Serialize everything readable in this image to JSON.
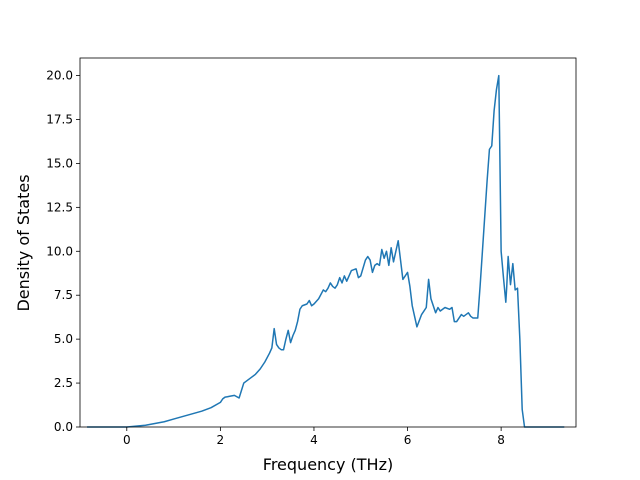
{
  "chart_data": {
    "type": "line",
    "title": "",
    "xlabel": "Frequency (THz)",
    "ylabel": "Density of States",
    "xlim": [
      -1.0,
      9.6
    ],
    "ylim": [
      0,
      21
    ],
    "xticks": [
      0,
      2,
      4,
      6,
      8
    ],
    "xtick_labels": [
      "0",
      "2",
      "4",
      "6",
      "8"
    ],
    "yticks": [
      0,
      2.5,
      5,
      7.5,
      10,
      12.5,
      15,
      17.5,
      20
    ],
    "ytick_labels": [
      "0.0",
      "2.5",
      "5.0",
      "7.5",
      "10.0",
      "12.5",
      "15.0",
      "17.5",
      "20.0"
    ],
    "grid": false,
    "legend": "none",
    "line_color": "#1f77b4",
    "series": [
      {
        "x": [
          -0.85,
          -0.5,
          -0.2,
          0.0,
          0.2,
          0.4,
          0.6,
          0.8,
          1.0,
          1.2,
          1.4,
          1.6,
          1.8,
          2.0,
          2.05,
          2.1,
          2.15,
          2.2,
          2.3,
          2.4,
          2.5,
          2.55,
          2.65,
          2.75,
          2.85,
          2.95,
          3.05,
          3.1,
          3.15,
          3.2,
          3.25,
          3.3,
          3.35,
          3.4,
          3.45,
          3.5,
          3.55,
          3.6,
          3.65,
          3.7,
          3.75,
          3.85,
          3.9,
          3.95,
          4.0,
          4.1,
          4.2,
          4.25,
          4.3,
          4.35,
          4.4,
          4.45,
          4.5,
          4.55,
          4.6,
          4.65,
          4.7,
          4.8,
          4.9,
          4.95,
          5.0,
          5.1,
          5.15,
          5.2,
          5.25,
          5.3,
          5.35,
          5.4,
          5.45,
          5.5,
          5.55,
          5.6,
          5.65,
          5.7,
          5.75,
          5.8,
          5.85,
          5.9,
          6.0,
          6.05,
          6.1,
          6.15,
          6.2,
          6.3,
          6.35,
          6.4,
          6.45,
          6.5,
          6.55,
          6.6,
          6.65,
          6.7,
          6.75,
          6.8,
          6.9,
          6.95,
          7.0,
          7.05,
          7.1,
          7.15,
          7.2,
          7.3,
          7.35,
          7.4,
          7.5,
          7.55,
          7.6,
          7.65,
          7.7,
          7.75,
          7.8,
          7.85,
          7.9,
          7.95,
          8.0,
          8.05,
          8.1,
          8.12,
          8.15,
          8.2,
          8.25,
          8.3,
          8.35,
          8.4,
          8.45,
          8.5,
          8.55,
          8.6,
          9.0,
          9.35
        ],
        "values": [
          0.0,
          0.0,
          0.0,
          0.0,
          0.05,
          0.1,
          0.2,
          0.3,
          0.45,
          0.6,
          0.75,
          0.9,
          1.1,
          1.4,
          1.6,
          1.7,
          1.72,
          1.75,
          1.8,
          1.65,
          2.5,
          2.6,
          2.8,
          3.0,
          3.3,
          3.7,
          4.2,
          4.5,
          5.6,
          4.7,
          4.5,
          4.4,
          4.4,
          5.0,
          5.5,
          4.8,
          5.2,
          5.5,
          6.0,
          6.7,
          6.9,
          7.0,
          7.2,
          6.9,
          7.0,
          7.3,
          7.8,
          7.7,
          7.9,
          8.2,
          8.0,
          7.9,
          8.1,
          8.5,
          8.2,
          8.6,
          8.3,
          8.9,
          9.0,
          8.5,
          8.6,
          9.5,
          9.7,
          9.5,
          8.8,
          9.2,
          9.3,
          9.2,
          10.1,
          9.6,
          10.0,
          9.2,
          10.2,
          9.4,
          10.0,
          10.6,
          9.5,
          8.4,
          8.8,
          8.0,
          6.9,
          6.3,
          5.7,
          6.4,
          6.6,
          6.8,
          8.4,
          7.3,
          6.9,
          6.5,
          6.8,
          6.6,
          6.7,
          6.8,
          6.7,
          6.8,
          6.0,
          6.0,
          6.2,
          6.4,
          6.3,
          6.5,
          6.3,
          6.2,
          6.2,
          8.0,
          10.0,
          12.0,
          14.0,
          15.8,
          16.0,
          18.0,
          19.2,
          20.0,
          10.0,
          8.5,
          7.1,
          8.0,
          9.7,
          8.1,
          9.3,
          7.8,
          7.9,
          5.0,
          1.0,
          0.0,
          0.0,
          0.0,
          0.0,
          0.0
        ]
      }
    ]
  }
}
